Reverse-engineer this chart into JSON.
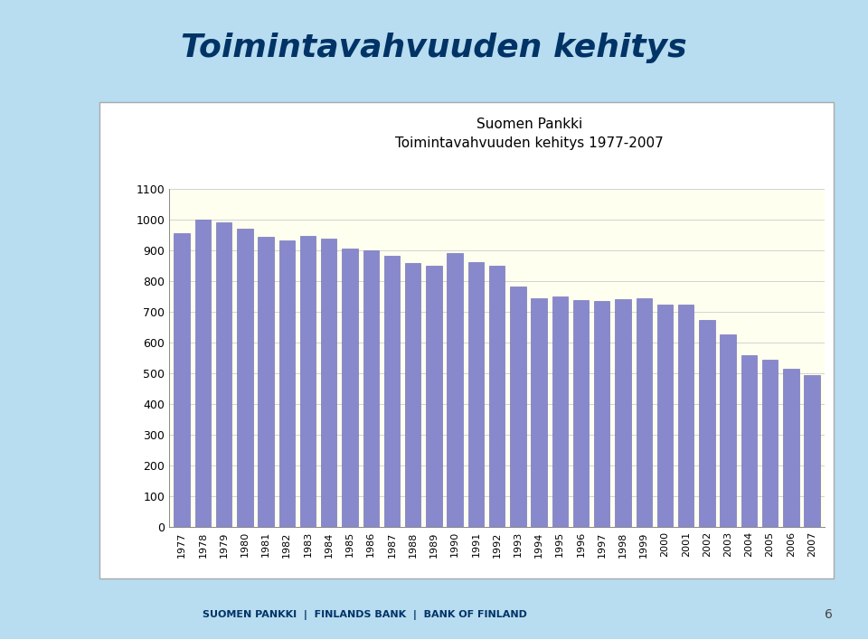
{
  "title_main": "Toimintavahvuuden kehitys",
  "chart_title_line1": "Suomen Pankki",
  "chart_title_line2": "Toimintavahvuuden kehitys 1977-2007",
  "years": [
    1977,
    1978,
    1979,
    1980,
    1981,
    1982,
    1983,
    1984,
    1985,
    1986,
    1987,
    1988,
    1989,
    1990,
    1991,
    1992,
    1993,
    1994,
    1995,
    1996,
    1997,
    1998,
    1999,
    2000,
    2001,
    2002,
    2003,
    2004,
    2005,
    2006,
    2007
  ],
  "values": [
    955,
    998,
    990,
    970,
    943,
    932,
    945,
    938,
    905,
    900,
    882,
    858,
    850,
    890,
    862,
    850,
    782,
    743,
    748,
    737,
    735,
    742,
    743,
    722,
    722,
    672,
    625,
    558,
    543,
    515,
    493
  ],
  "bar_color": "#8888cc",
  "bar_edge_color": "#7777bb",
  "plot_bg_color": "#fffff0",
  "box_bg_color": "#ffffff",
  "page_bg_color": "#b8dcf0",
  "ylim": [
    0,
    1100
  ],
  "yticks": [
    0,
    100,
    200,
    300,
    400,
    500,
    600,
    700,
    800,
    900,
    1000,
    1100
  ],
  "title_color": "#003366",
  "title_fontsize": 26,
  "chart_title_fontsize": 11,
  "tick_fontsize": 9,
  "footer_text": "SUOMEN PANKKI  |  FINLANDS BANK  |  BANK OF FINLAND",
  "footer_color": "#003366",
  "footer_fontsize": 8,
  "page_number": "6"
}
